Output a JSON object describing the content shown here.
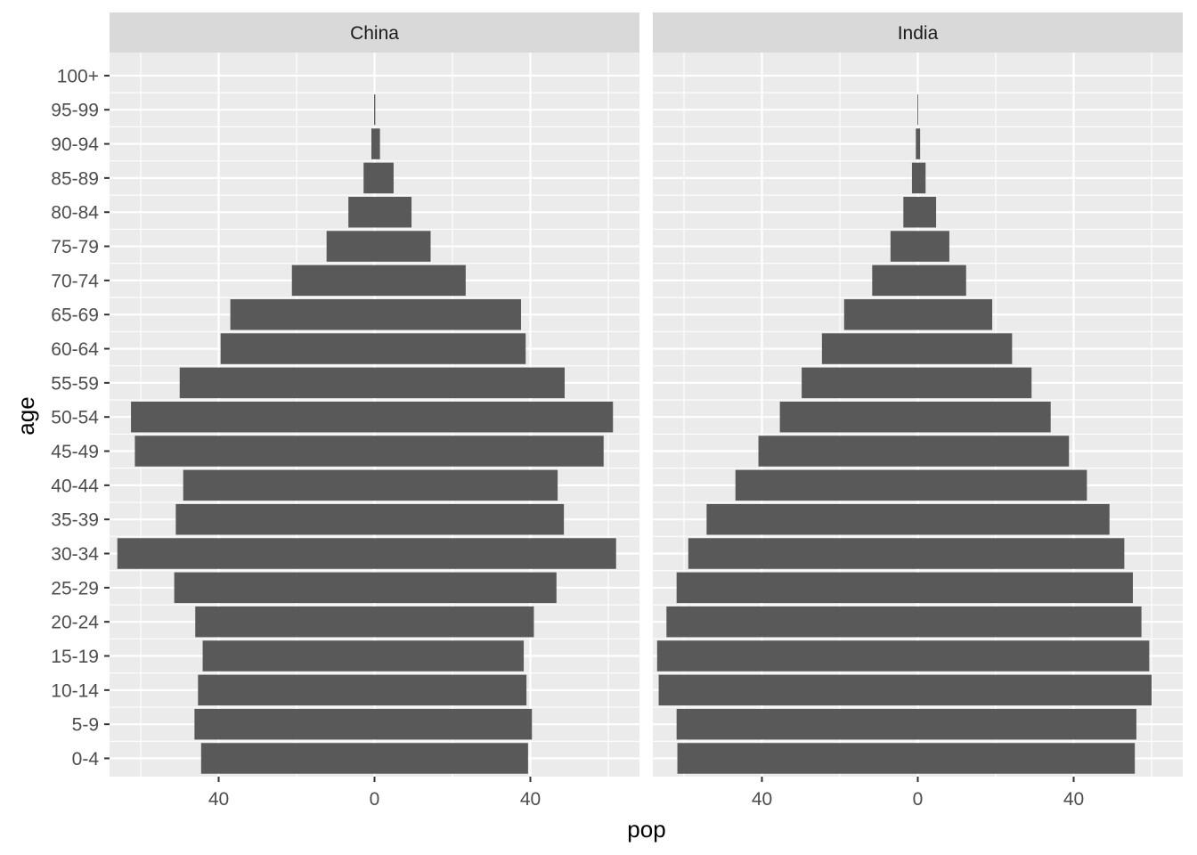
{
  "chart_data": {
    "type": "bar",
    "orientation": "horizontal",
    "layout": "population-pyramid",
    "xlabel": "pop",
    "ylabel": "age",
    "xlim": [
      -68,
      68
    ],
    "x_ticks": [
      -40,
      0,
      40
    ],
    "x_tick_labels": [
      "40",
      "0",
      "40"
    ],
    "x_minor_ticks": [
      -60,
      -20,
      20,
      60
    ],
    "categories": [
      "0-4",
      "5-9",
      "10-14",
      "15-19",
      "20-24",
      "25-29",
      "30-34",
      "35-39",
      "40-44",
      "45-49",
      "50-54",
      "55-59",
      "60-64",
      "65-69",
      "70-74",
      "75-79",
      "80-84",
      "85-89",
      "90-94",
      "95-99",
      "100+"
    ],
    "grid": true,
    "legend": "none",
    "colors": {
      "bar": "#595959",
      "panel_bg": "#ebebeb",
      "strip_bg": "#d9d9d9",
      "grid": "#ffffff"
    },
    "panels": [
      {
        "name": "China",
        "left": [
          44.5,
          46.2,
          45.3,
          44.1,
          46.0,
          51.4,
          66.0,
          51.0,
          49.1,
          61.5,
          62.5,
          50.0,
          39.5,
          37.0,
          21.2,
          12.3,
          6.7,
          2.8,
          0.8,
          0.1,
          0.0
        ],
        "right": [
          39.4,
          40.4,
          39.0,
          38.3,
          40.9,
          46.7,
          62.0,
          48.6,
          47.0,
          58.8,
          61.2,
          48.8,
          38.8,
          37.6,
          23.4,
          14.4,
          9.5,
          4.9,
          1.4,
          0.2,
          0.0
        ]
      },
      {
        "name": "India",
        "left": [
          61.7,
          61.9,
          66.5,
          66.9,
          64.5,
          61.9,
          58.9,
          54.2,
          46.8,
          40.9,
          35.4,
          29.8,
          24.6,
          18.9,
          11.7,
          7.0,
          3.7,
          1.5,
          0.5,
          0.1,
          0.0
        ],
        "right": [
          55.7,
          56.1,
          60.0,
          59.4,
          57.4,
          55.2,
          53.0,
          49.2,
          43.4,
          38.8,
          34.1,
          29.2,
          24.2,
          19.1,
          12.4,
          8.1,
          4.7,
          2.0,
          0.6,
          0.1,
          0.0
        ]
      }
    ]
  }
}
